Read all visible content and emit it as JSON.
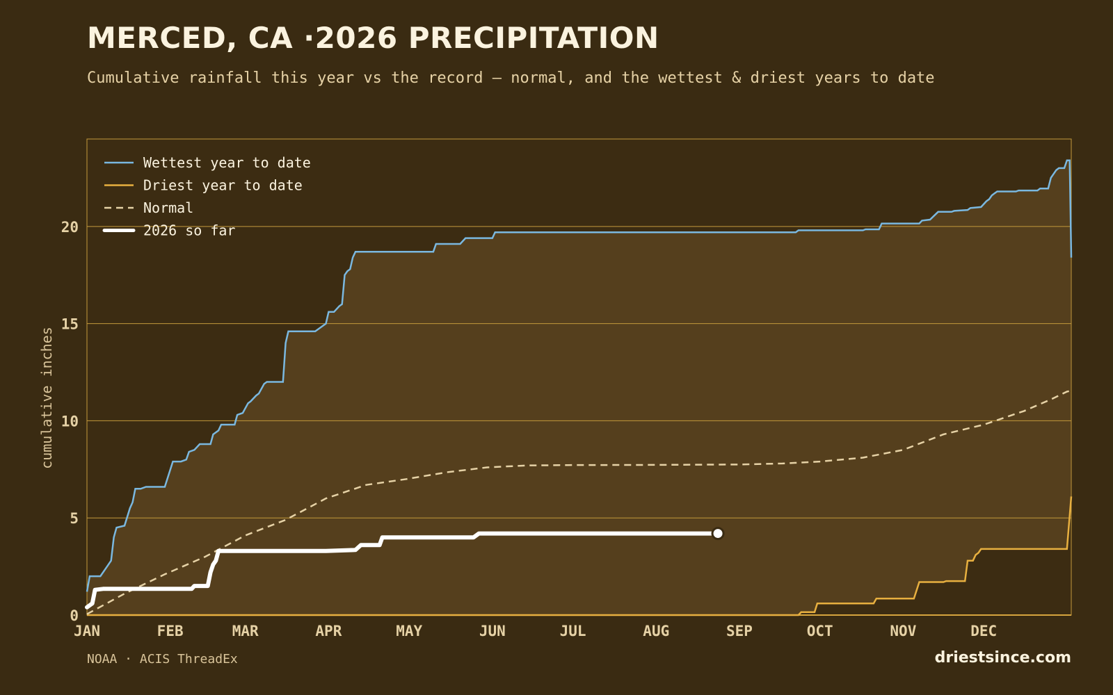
{
  "header": {
    "title": "MERCED, CA ·2026 PRECIPITATION",
    "subtitle": "Cumulative rainfall this year vs the record — normal, and the wettest & driest years to date"
  },
  "footer": {
    "source": "NOAA · ACIS ThreadEx",
    "brand": "driestsince.com"
  },
  "colors": {
    "background": "#3a2b12",
    "band_fill": "#553f1d",
    "frame": "#c49a3c",
    "wettest": "#7ab8e0",
    "driest": "#e8b040",
    "normal": "#e6d2a6",
    "current": "#ffffff"
  },
  "chart_data": {
    "type": "line",
    "title": "MERCED, CA ·2026 PRECIPITATION",
    "xlabel": "",
    "ylabel": "cumulative inches",
    "x_unit": "day of year",
    "xlim": [
      1,
      366
    ],
    "ylim": [
      0,
      24.5
    ],
    "grid": true,
    "legend_position": "top-left",
    "yticks": [
      0,
      5,
      10,
      15,
      20
    ],
    "month_ticks": [
      {
        "label": "JAN",
        "day": 1
      },
      {
        "label": "FEB",
        "day": 32
      },
      {
        "label": "MAR",
        "day": 60
      },
      {
        "label": "APR",
        "day": 91
      },
      {
        "label": "MAY",
        "day": 121
      },
      {
        "label": "JUN",
        "day": 152
      },
      {
        "label": "JUL",
        "day": 182
      },
      {
        "label": "AUG",
        "day": 213
      },
      {
        "label": "SEP",
        "day": 244
      },
      {
        "label": "OCT",
        "day": 274
      },
      {
        "label": "NOV",
        "day": 305
      },
      {
        "label": "DEC",
        "day": 335
      }
    ],
    "series": [
      {
        "name": "Wettest year to date",
        "key": "wettest",
        "style": "solid",
        "points": [
          [
            1,
            1.2
          ],
          [
            2,
            2.0
          ],
          [
            6,
            2.0
          ],
          [
            8,
            2.4
          ],
          [
            10,
            2.8
          ],
          [
            11,
            4.0
          ],
          [
            12,
            4.5
          ],
          [
            15,
            4.6
          ],
          [
            17,
            5.5
          ],
          [
            18,
            5.8
          ],
          [
            19,
            6.5
          ],
          [
            21,
            6.5
          ],
          [
            23,
            6.6
          ],
          [
            30,
            6.6
          ],
          [
            33,
            7.9
          ],
          [
            36,
            7.9
          ],
          [
            38,
            8.0
          ],
          [
            39,
            8.4
          ],
          [
            41,
            8.5
          ],
          [
            43,
            8.8
          ],
          [
            47,
            8.8
          ],
          [
            48,
            9.3
          ],
          [
            50,
            9.5
          ],
          [
            51,
            9.8
          ],
          [
            56,
            9.8
          ],
          [
            57,
            10.3
          ],
          [
            59,
            10.4
          ],
          [
            61,
            10.9
          ],
          [
            62,
            11.0
          ],
          [
            64,
            11.3
          ],
          [
            65,
            11.4
          ],
          [
            67,
            11.9
          ],
          [
            68,
            12.0
          ],
          [
            74,
            12.0
          ],
          [
            75,
            14.0
          ],
          [
            76,
            14.6
          ],
          [
            86,
            14.6
          ],
          [
            89,
            14.9
          ],
          [
            90,
            15.0
          ],
          [
            91,
            15.6
          ],
          [
            93,
            15.6
          ],
          [
            95,
            15.9
          ],
          [
            96,
            16.0
          ],
          [
            97,
            17.5
          ],
          [
            98,
            17.7
          ],
          [
            99,
            17.8
          ],
          [
            100,
            18.4
          ],
          [
            101,
            18.7
          ],
          [
            130,
            18.7
          ],
          [
            131,
            19.1
          ],
          [
            140,
            19.1
          ],
          [
            142,
            19.4
          ],
          [
            152,
            19.4
          ],
          [
            153,
            19.7
          ],
          [
            210,
            19.7
          ],
          [
            265,
            19.7
          ],
          [
            266,
            19.8
          ],
          [
            290,
            19.8
          ],
          [
            291,
            19.85
          ],
          [
            296,
            19.85
          ],
          [
            297,
            20.15
          ],
          [
            311,
            20.15
          ],
          [
            312,
            20.3
          ],
          [
            315,
            20.35
          ],
          [
            318,
            20.75
          ],
          [
            323,
            20.75
          ],
          [
            324,
            20.8
          ],
          [
            329,
            20.85
          ],
          [
            330,
            20.95
          ],
          [
            334,
            21.0
          ],
          [
            336,
            21.3
          ],
          [
            337,
            21.4
          ],
          [
            338,
            21.6
          ],
          [
            339,
            21.7
          ],
          [
            340,
            21.8
          ],
          [
            347,
            21.8
          ],
          [
            348,
            21.85
          ],
          [
            355,
            21.85
          ],
          [
            356,
            21.95
          ],
          [
            359,
            21.95
          ],
          [
            360,
            22.5
          ],
          [
            362,
            22.9
          ],
          [
            363,
            23.0
          ],
          [
            365,
            23.0
          ],
          [
            366,
            23.4
          ],
          [
            367,
            23.4
          ],
          [
            367.6,
            18.4
          ]
        ]
      },
      {
        "name": "Driest year to date",
        "key": "driest",
        "style": "solid",
        "points": [
          [
            1,
            0
          ],
          [
            266,
            0
          ],
          [
            267,
            0.15
          ],
          [
            272,
            0.15
          ],
          [
            273,
            0.6
          ],
          [
            294,
            0.6
          ],
          [
            295,
            0.85
          ],
          [
            309,
            0.85
          ],
          [
            311,
            1.7
          ],
          [
            320,
            1.7
          ],
          [
            321,
            1.75
          ],
          [
            328,
            1.75
          ],
          [
            329,
            2.8
          ],
          [
            331,
            2.8
          ],
          [
            332,
            3.1
          ],
          [
            333,
            3.2
          ],
          [
            334,
            3.4
          ],
          [
            366,
            3.4
          ],
          [
            367.6,
            6.1
          ]
        ]
      },
      {
        "name": "Normal",
        "key": "normal",
        "style": "dashed",
        "points": [
          [
            1,
            0.05
          ],
          [
            15,
            1.1
          ],
          [
            30,
            2.1
          ],
          [
            45,
            3.0
          ],
          [
            60,
            4.1
          ],
          [
            75,
            4.9
          ],
          [
            90,
            6.0
          ],
          [
            105,
            6.7
          ],
          [
            120,
            7.0
          ],
          [
            135,
            7.35
          ],
          [
            150,
            7.6
          ],
          [
            165,
            7.7
          ],
          [
            180,
            7.72
          ],
          [
            213,
            7.73
          ],
          [
            244,
            7.75
          ],
          [
            260,
            7.8
          ],
          [
            274,
            7.9
          ],
          [
            290,
            8.1
          ],
          [
            305,
            8.5
          ],
          [
            320,
            9.3
          ],
          [
            335,
            9.8
          ],
          [
            350,
            10.5
          ],
          [
            360,
            11.1
          ],
          [
            366,
            11.5
          ],
          [
            367.6,
            11.55
          ]
        ]
      },
      {
        "name": "2026 so far",
        "key": "current",
        "style": "thick",
        "points": [
          [
            1,
            0.4
          ],
          [
            2,
            0.5
          ],
          [
            3,
            0.6
          ],
          [
            4,
            1.3
          ],
          [
            7,
            1.35
          ],
          [
            40,
            1.35
          ],
          [
            41,
            1.5
          ],
          [
            46,
            1.5
          ],
          [
            47,
            2.2
          ],
          [
            48,
            2.6
          ],
          [
            49,
            2.8
          ],
          [
            50,
            3.3
          ],
          [
            90,
            3.3
          ],
          [
            101,
            3.35
          ],
          [
            103,
            3.6
          ],
          [
            110,
            3.6
          ],
          [
            111,
            4.0
          ],
          [
            145,
            4.0
          ],
          [
            147,
            4.2
          ],
          [
            236,
            4.2
          ]
        ],
        "end_marker": true
      }
    ],
    "band": {
      "upper": "wettest",
      "lower": "driest"
    }
  }
}
